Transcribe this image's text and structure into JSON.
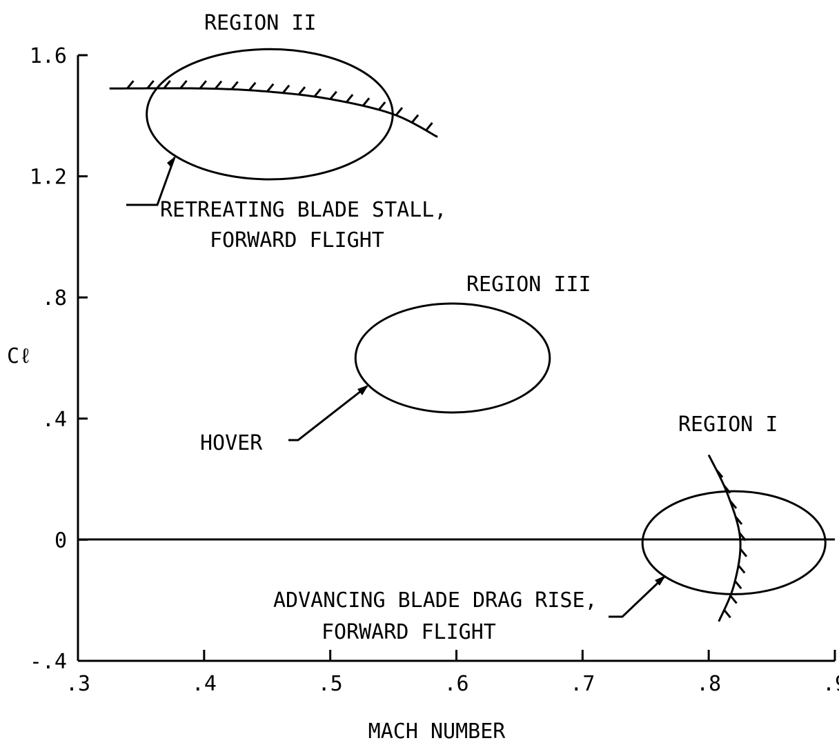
{
  "chart_data": {
    "type": "scatter",
    "title": "",
    "xlabel": "MACH NUMBER",
    "ylabel": "Cℓ",
    "xlim": [
      0.3,
      0.9
    ],
    "ylim": [
      -0.4,
      1.6
    ],
    "x_ticks": [
      ".3",
      ".4",
      ".5",
      ".6",
      ".7",
      ".8",
      ".9"
    ],
    "y_ticks": [
      "-.4",
      "0",
      ".4",
      ".8",
      "1.2",
      "1.6"
    ],
    "regions": [
      {
        "name": "REGION II",
        "annotation": [
          "RETREATING BLADE STALL,",
          "FORWARD FLIGHT"
        ],
        "center": [
          0.452,
          1.405
        ],
        "x_range": [
          0.355,
          0.55
        ],
        "y_range": [
          1.19,
          1.62
        ]
      },
      {
        "name": "REGION III",
        "annotation": [
          "HOVER"
        ],
        "center": [
          0.597,
          0.6
        ],
        "x_range": [
          0.52,
          0.674
        ],
        "y_range": [
          0.42,
          0.78
        ]
      },
      {
        "name": "REGION I",
        "annotation": [
          "ADVANCING BLADE DRAG RISE,",
          "FORWARD FLIGHT"
        ],
        "center": [
          0.82,
          -0.01
        ],
        "x_range": [
          0.748,
          0.893
        ],
        "y_range": [
          -0.18,
          0.16
        ]
      }
    ],
    "boundaries": [
      {
        "name": "retreating blade stall boundary",
        "points": [
          [
            0.325,
            1.49
          ],
          [
            0.4,
            1.49
          ],
          [
            0.45,
            1.48
          ],
          [
            0.5,
            1.455
          ],
          [
            0.55,
            1.405
          ],
          [
            0.585,
            1.33
          ]
        ]
      },
      {
        "name": "advancing blade drag rise boundary",
        "points": [
          [
            0.8,
            0.28
          ],
          [
            0.815,
            0.15
          ],
          [
            0.825,
            0.0
          ],
          [
            0.82,
            -0.15
          ],
          [
            0.808,
            -0.27
          ]
        ]
      }
    ]
  }
}
